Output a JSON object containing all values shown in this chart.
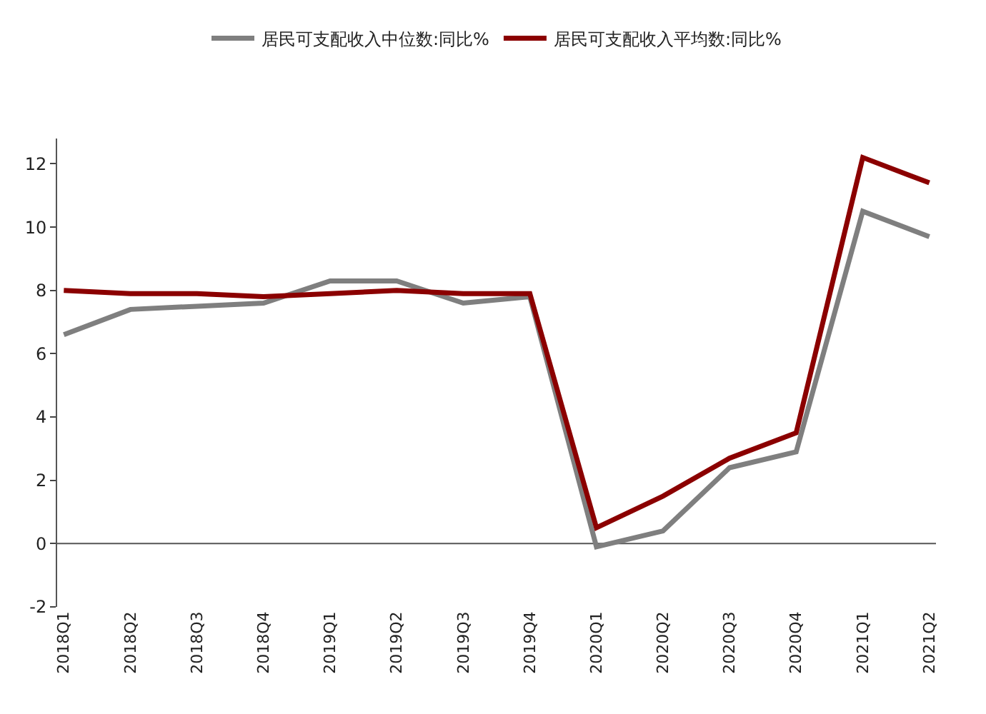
{
  "chart_data": {
    "type": "line",
    "categories": [
      "2018Q1",
      "2018Q2",
      "2018Q3",
      "2018Q4",
      "2019Q1",
      "2019Q2",
      "2019Q3",
      "2019Q4",
      "2020Q1",
      "2020Q2",
      "2020Q3",
      "2020Q4",
      "2021Q1",
      "2021Q2"
    ],
    "series": [
      {
        "name": "居民可支配收入中位数:同比%",
        "color": "#7f7f7f",
        "values": [
          6.6,
          7.4,
          7.5,
          7.6,
          8.3,
          8.3,
          7.6,
          7.8,
          -0.1,
          0.4,
          2.4,
          2.9,
          10.5,
          9.7
        ]
      },
      {
        "name": "居民可支配收入平均数:同比%",
        "color": "#8b0000",
        "values": [
          8.0,
          7.9,
          7.9,
          7.8,
          7.9,
          8.0,
          7.9,
          7.9,
          0.5,
          1.5,
          2.7,
          3.5,
          12.2,
          11.4
        ]
      }
    ],
    "ylim": [
      -2,
      12.8
    ],
    "yticks": [
      -2,
      0,
      2,
      4,
      6,
      8,
      10,
      12
    ],
    "ref_lines": [
      {
        "axis": "y",
        "value": 0,
        "color": "#555555"
      }
    ],
    "grid": false,
    "legend": "top",
    "marker": "none",
    "line_style": "solid"
  }
}
